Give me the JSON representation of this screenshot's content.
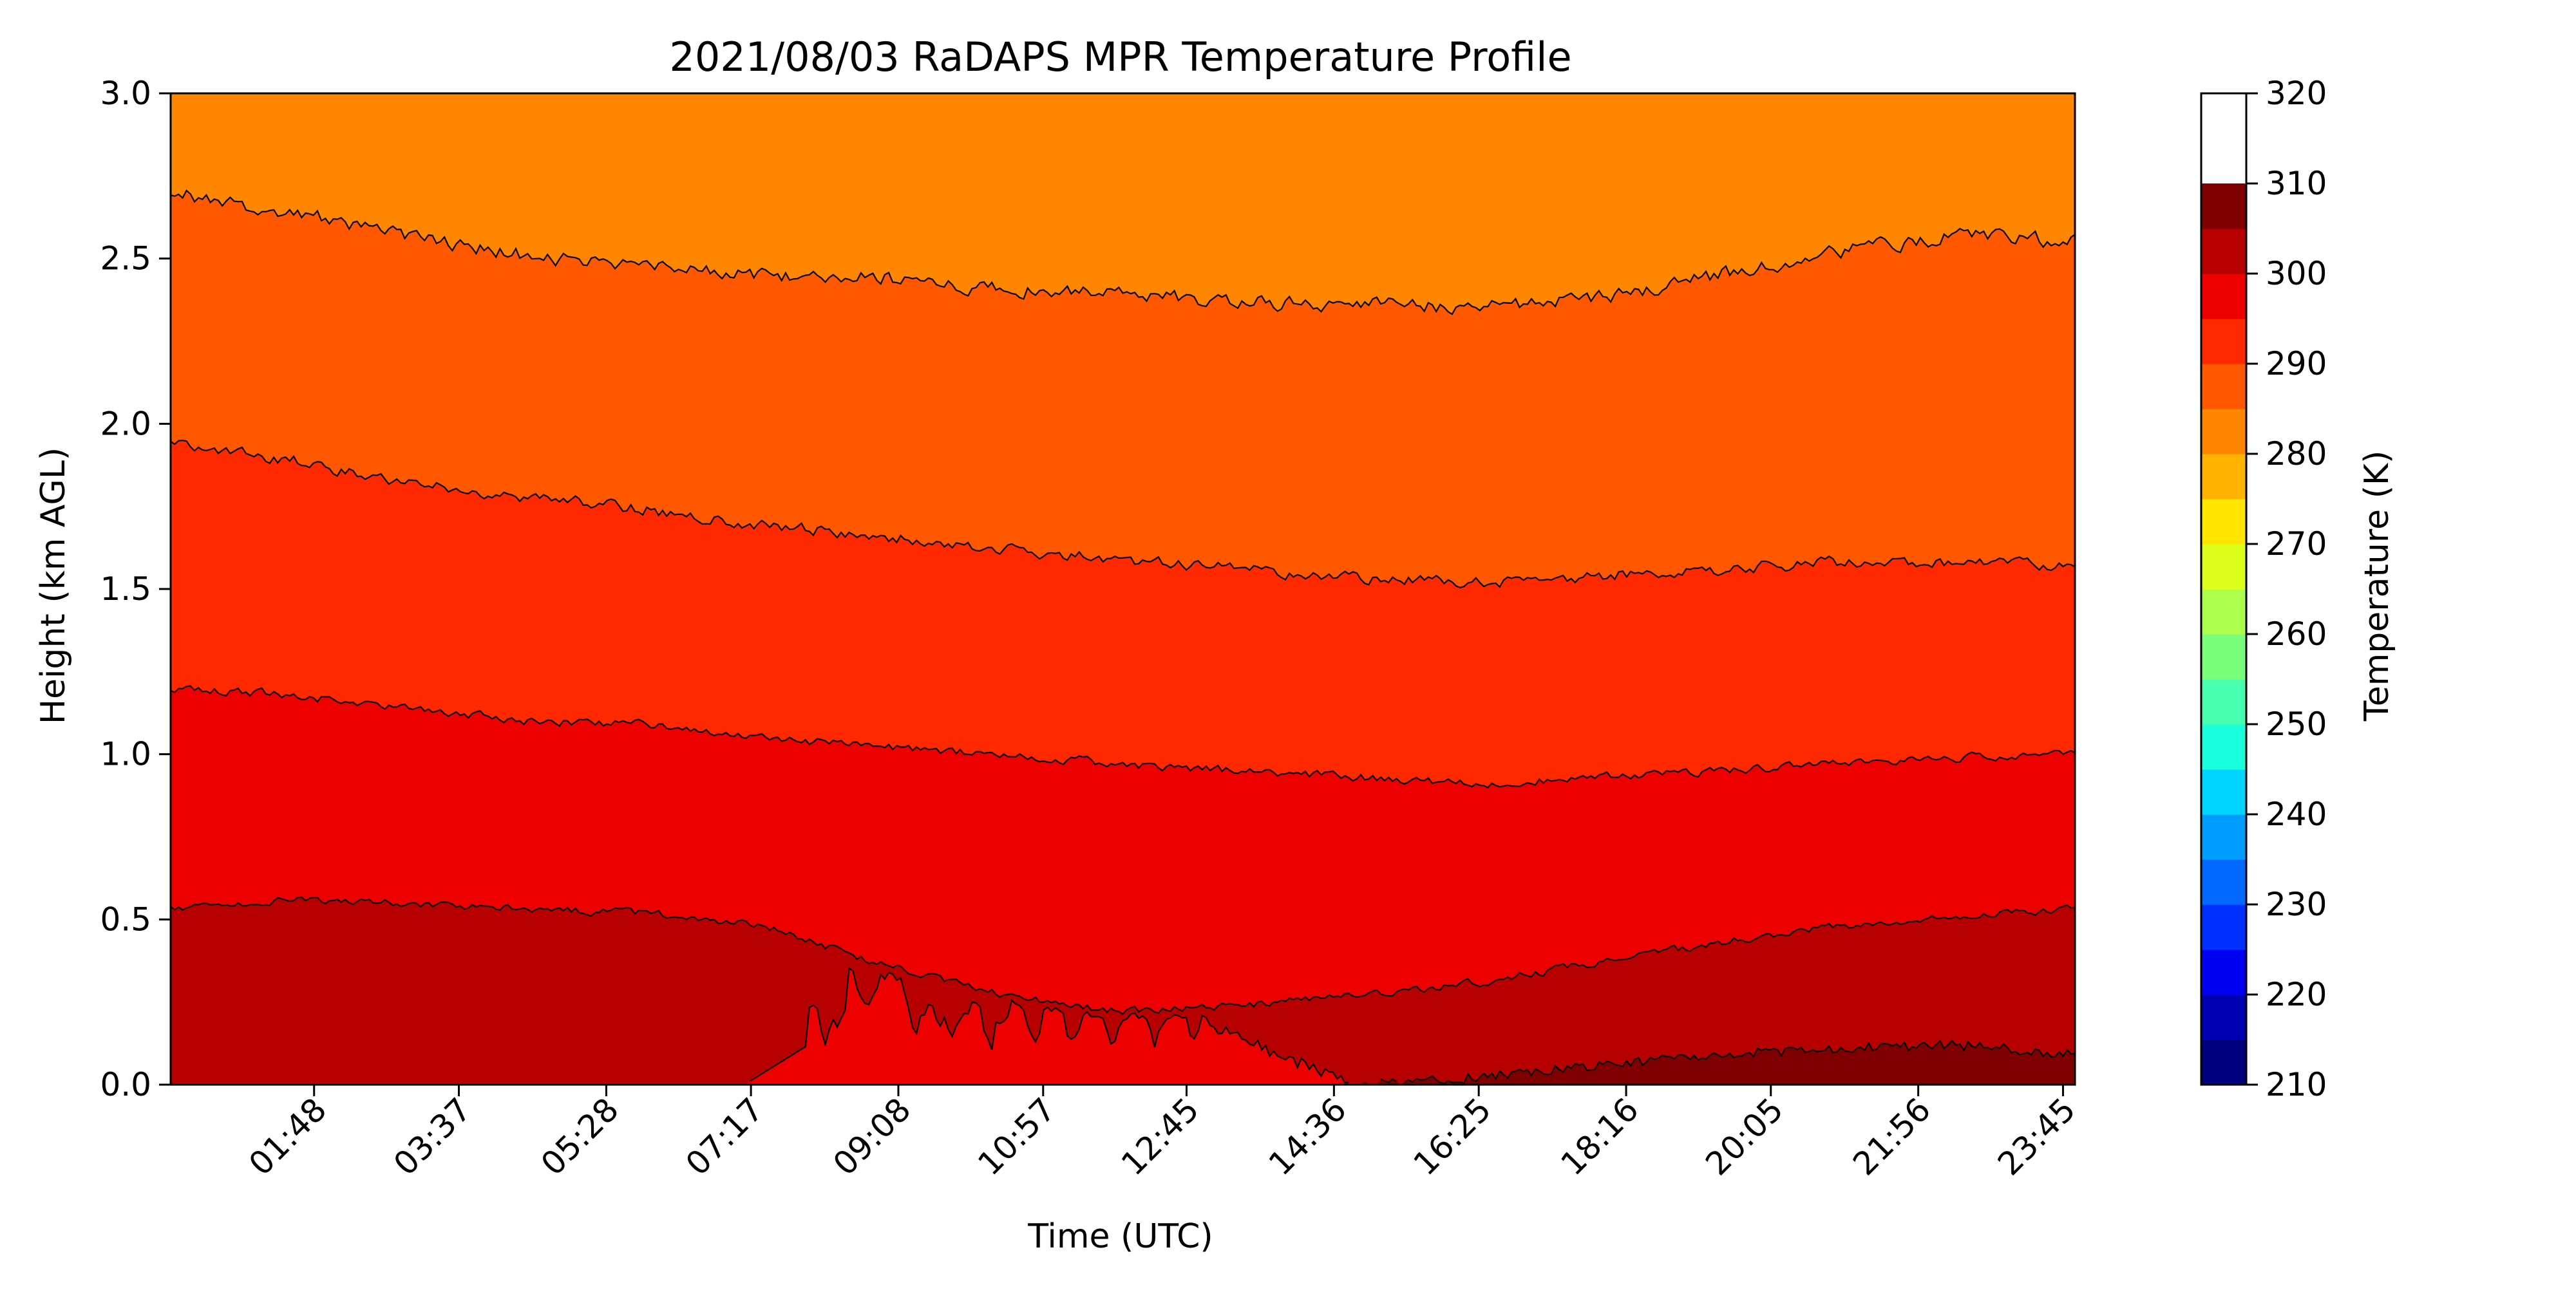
{
  "chart_data": {
    "type": "contourf",
    "title": "2021/08/03 RaDAPS MPR Temperature Profile",
    "xlabel": "Time (UTC)",
    "ylabel": "Height (km AGL)",
    "x_unit": "hours UTC",
    "xlim": [
      0.0,
      23.9
    ],
    "x_ticks": [
      {
        "value": 1.8,
        "label": "01:48"
      },
      {
        "value": 3.617,
        "label": "03:37"
      },
      {
        "value": 5.467,
        "label": "05:28"
      },
      {
        "value": 7.283,
        "label": "07:17"
      },
      {
        "value": 9.133,
        "label": "09:08"
      },
      {
        "value": 10.95,
        "label": "10:57"
      },
      {
        "value": 12.75,
        "label": "12:45"
      },
      {
        "value": 14.6,
        "label": "14:36"
      },
      {
        "value": 16.417,
        "label": "16:25"
      },
      {
        "value": 18.267,
        "label": "18:16"
      },
      {
        "value": 20.083,
        "label": "20:05"
      },
      {
        "value": 21.933,
        "label": "21:56"
      },
      {
        "value": 23.75,
        "label": "23:45"
      }
    ],
    "ylim": [
      0.0,
      3.0
    ],
    "y_ticks": [
      "0.0",
      "0.5",
      "1.0",
      "1.5",
      "2.0",
      "2.5",
      "3.0"
    ],
    "colorbar": {
      "label": "Temperature (K)",
      "range": [
        210,
        320
      ],
      "level_step": 5,
      "tick_labels": [
        "210",
        "220",
        "230",
        "240",
        "250",
        "260",
        "270",
        "280",
        "290",
        "300",
        "310",
        "320"
      ],
      "colors": [
        "#00007f",
        "#0000b2",
        "#0000f1",
        "#0030ff",
        "#0068ff",
        "#009cff",
        "#00d4ff",
        "#1affdc",
        "#47ffaf",
        "#7aff7d",
        "#acff4a",
        "#dbff1b",
        "#ffe600",
        "#ffb300",
        "#ff8600",
        "#ff5800",
        "#ff2900",
        "#ec0000",
        "#b70000",
        "#7f0000"
      ]
    },
    "contour_lines": [
      {
        "level": 300,
        "heights_km": [
          0.53,
          0.56,
          0.55,
          0.53,
          0.52,
          0.48,
          0.36,
          0.27,
          0.22,
          0.24,
          0.27,
          0.31,
          0.37,
          0.43,
          0.48,
          0.51,
          0.53
        ]
      },
      {
        "level": 295,
        "heights_km": [
          1.2,
          1.18,
          1.14,
          1.1,
          1.09,
          1.05,
          1.02,
          1.0,
          0.97,
          0.95,
          0.93,
          0.91,
          0.93,
          0.95,
          0.97,
          0.99,
          1.0
        ]
      },
      {
        "level": 290,
        "heights_km": [
          1.95,
          1.89,
          1.82,
          1.78,
          1.74,
          1.69,
          1.66,
          1.62,
          1.59,
          1.56,
          1.53,
          1.52,
          1.54,
          1.56,
          1.58,
          1.58,
          1.57
        ]
      },
      {
        "level": 285,
        "heights_km": [
          2.7,
          2.64,
          2.57,
          2.51,
          2.47,
          2.45,
          2.44,
          2.41,
          2.39,
          2.37,
          2.36,
          2.35,
          2.38,
          2.45,
          2.52,
          2.57,
          2.55
        ]
      },
      {
        "level": 305,
        "heights_km": [
          0,
          0,
          0,
          0,
          0,
          0,
          0,
          0,
          0,
          0,
          0,
          0.02,
          0.06,
          0.09,
          0.11,
          0.12,
          0.09
        ]
      }
    ],
    "grid": false
  }
}
